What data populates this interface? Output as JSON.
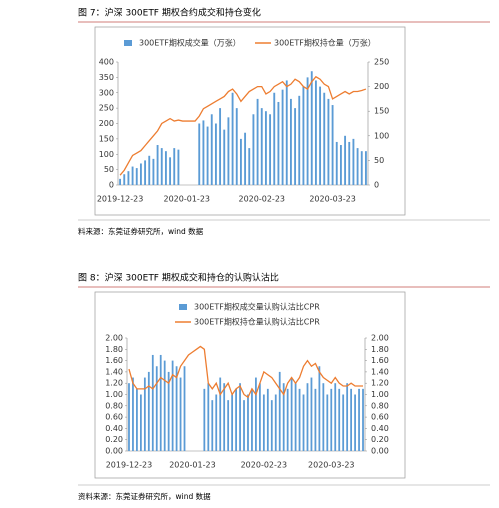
{
  "chart_data": [
    {
      "type": "bar",
      "title": "图 7：沪深 300ETF 期权合约成交和持仓变化",
      "source": "料来源：东莞证券研究所，wind 数据",
      "categories": [
        "2019-12-23",
        null,
        null,
        null,
        null,
        null,
        null,
        null,
        null,
        null,
        null,
        null,
        null,
        null,
        null,
        null,
        "2020-01-23",
        null,
        null,
        null,
        null,
        null,
        null,
        null,
        null,
        null,
        null,
        null,
        null,
        null,
        null,
        null,
        null,
        null,
        "2020-02-23",
        null,
        null,
        null,
        null,
        null,
        null,
        null,
        null,
        null,
        null,
        null,
        null,
        null,
        null,
        null,
        null,
        "2020-03-23",
        null,
        null,
        null,
        null,
        null,
        null,
        null,
        null
      ],
      "series": [
        {
          "name": "300ETF期权成交量（万张）",
          "type": "bar",
          "color": "#5b9bd5",
          "values": [
            20,
            35,
            45,
            60,
            55,
            70,
            80,
            95,
            85,
            130,
            120,
            110,
            90,
            120,
            115,
            null,
            null,
            null,
            null,
            200,
            210,
            190,
            230,
            200,
            250,
            180,
            220,
            300,
            250,
            150,
            170,
            120,
            230,
            280,
            250,
            240,
            230,
            300,
            270,
            310,
            340,
            280,
            250,
            290,
            320,
            350,
            370,
            340,
            320,
            300,
            280,
            260,
            140,
            130,
            160,
            140,
            150,
            120,
            110,
            110
          ]
        },
        {
          "name": "300ETF期权持仓量（万张）",
          "type": "line",
          "axis": "y2",
          "color": "#ed7d31",
          "values": [
            20,
            30,
            45,
            60,
            65,
            70,
            80,
            90,
            100,
            110,
            125,
            130,
            135,
            130,
            132,
            130,
            130,
            130,
            130,
            140,
            155,
            160,
            165,
            170,
            175,
            180,
            190,
            195,
            185,
            170,
            180,
            190,
            195,
            200,
            200,
            185,
            190,
            200,
            205,
            210,
            200,
            205,
            215,
            210,
            200,
            195,
            210,
            220,
            215,
            205,
            200,
            175,
            180,
            185,
            190,
            185,
            190,
            190,
            192,
            195
          ]
        }
      ],
      "ylim": [
        0,
        400
      ],
      "yticks": [
        0,
        50,
        100,
        150,
        200,
        250,
        300,
        350,
        400
      ],
      "y2lim": [
        0,
        250
      ],
      "y2ticks": [
        0,
        50,
        100,
        150,
        200,
        250
      ],
      "grid": false,
      "legend": "top"
    },
    {
      "type": "bar",
      "title": "图 8：沪深 300ETF 期权成交和持仓的认购认沽比",
      "source": "资料来源：东莞证券研究所，wind 数据",
      "categories": [
        "2019-12-23",
        null,
        null,
        null,
        null,
        null,
        null,
        null,
        null,
        null,
        null,
        null,
        null,
        null,
        null,
        null,
        "2020-01-23",
        null,
        null,
        null,
        null,
        null,
        null,
        null,
        null,
        null,
        null,
        null,
        null,
        null,
        null,
        null,
        null,
        null,
        "2020-02-23",
        null,
        null,
        null,
        null,
        null,
        null,
        null,
        null,
        null,
        null,
        null,
        null,
        null,
        null,
        null,
        null,
        "2020-03-23",
        null,
        null,
        null,
        null,
        null,
        null,
        null,
        null
      ],
      "series": [
        {
          "name": "300ETF期权成交量认购认沽比CPR",
          "type": "bar",
          "color": "#5b9bd5",
          "values": [
            1.2,
            1.3,
            1.1,
            1.0,
            1.3,
            1.4,
            1.7,
            1.5,
            1.7,
            1.6,
            1.4,
            1.6,
            1.5,
            1.3,
            1.5,
            null,
            null,
            null,
            null,
            1.1,
            1.2,
            0.9,
            1.0,
            1.3,
            1.2,
            0.9,
            1.0,
            1.1,
            1.2,
            0.9,
            1.0,
            1.1,
            1.3,
            1.2,
            1.0,
            1.1,
            0.9,
            1.0,
            1.4,
            1.2,
            1.1,
            1.3,
            1.2,
            1.1,
            1.0,
            1.2,
            1.3,
            1.1,
            1.5,
            1.2,
            1.0,
            1.1,
            1.2,
            1.1,
            1.0,
            1.2,
            1.1,
            1.0,
            1.1,
            1.1
          ]
        },
        {
          "name": "300ETF期权持仓量认购认沽比CPR",
          "type": "line",
          "axis": "y2",
          "color": "#ed7d31",
          "values": [
            1.45,
            1.2,
            1.1,
            1.1,
            1.1,
            1.15,
            1.1,
            1.2,
            1.3,
            1.25,
            1.2,
            1.35,
            1.3,
            1.5,
            1.6,
            1.7,
            1.75,
            1.8,
            1.85,
            1.8,
            1.2,
            1.1,
            1.2,
            1.0,
            1.1,
            1.2,
            1.0,
            1.1,
            1.15,
            1.0,
            0.95,
            1.1,
            1.0,
            1.2,
            1.4,
            1.35,
            1.3,
            1.2,
            1.1,
            1.0,
            1.2,
            1.3,
            1.2,
            1.3,
            1.5,
            1.6,
            1.5,
            1.55,
            1.4,
            1.3,
            1.25,
            1.2,
            1.3,
            1.2,
            1.15,
            1.15,
            1.2,
            1.15,
            1.15,
            1.15
          ]
        }
      ],
      "ylim": [
        0,
        2
      ],
      "yticks": [
        {
          "value": 0,
          "label": "0.00"
        },
        {
          "value": 0.2,
          "label": "0.20"
        },
        {
          "value": 0.4,
          "label": "0.40"
        },
        {
          "value": 0.6,
          "label": "0.60"
        },
        {
          "value": 0.8,
          "label": "0.80"
        },
        {
          "value": 1,
          "label": "1.00"
        },
        {
          "value": 1.2,
          "label": "1.20"
        },
        {
          "value": 1.4,
          "label": "1.40"
        },
        {
          "value": 1.6,
          "label": "1.60"
        },
        {
          "value": 1.8,
          "label": "1.80"
        },
        {
          "value": 2,
          "label": "2.00"
        }
      ],
      "y2lim": [
        0,
        2
      ],
      "y2ticks": [
        {
          "value": 0,
          "label": "0.00"
        },
        {
          "value": 0.2,
          "label": "0.20"
        },
        {
          "value": 0.4,
          "label": "0.40"
        },
        {
          "value": 0.6,
          "label": "0.60"
        },
        {
          "value": 0.8,
          "label": "0.80"
        },
        {
          "value": 1,
          "label": "1.00"
        },
        {
          "value": 1.2,
          "label": "1.20"
        },
        {
          "value": 1.4,
          "label": "1.40"
        },
        {
          "value": 1.6,
          "label": "1.60"
        },
        {
          "value": 1.8,
          "label": "1.80"
        },
        {
          "value": 2,
          "label": "2.00"
        }
      ],
      "grid": false,
      "legend": "top"
    }
  ]
}
